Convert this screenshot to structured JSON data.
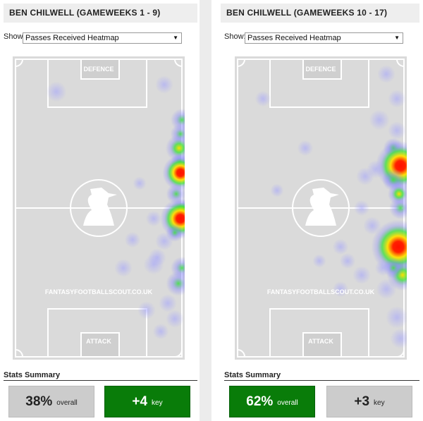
{
  "panels": [
    {
      "title": "BEN CHILWELL (GAMEWEEKS 1 - 9)",
      "show_label": "Show:",
      "select": "Passes Received Heatmap",
      "pitch": {
        "top_label": "DEFENCE",
        "bottom_label": "ATTACK",
        "watermark": "FANTASYFOOTBALLSCOUT.CO.UK"
      },
      "stats_title": "Stats Summary",
      "stats": [
        {
          "value": "38%",
          "label": "overall"
        },
        {
          "value": "+4",
          "label": "key"
        }
      ]
    },
    {
      "title": "BEN CHILWELL (GAMEWEEKS 10 - 17)",
      "show_label": "Show:",
      "select": "Passes Received Heatmap",
      "pitch": {
        "top_label": "DEFENCE",
        "bottom_label": "ATTACK",
        "watermark": "FANTASYFOOTBALLSCOUT.CO.UK"
      },
      "stats_title": "Stats Summary",
      "stats": [
        {
          "value": "62%",
          "label": "overall"
        },
        {
          "value": "+3",
          "label": "key"
        }
      ]
    }
  ]
}
